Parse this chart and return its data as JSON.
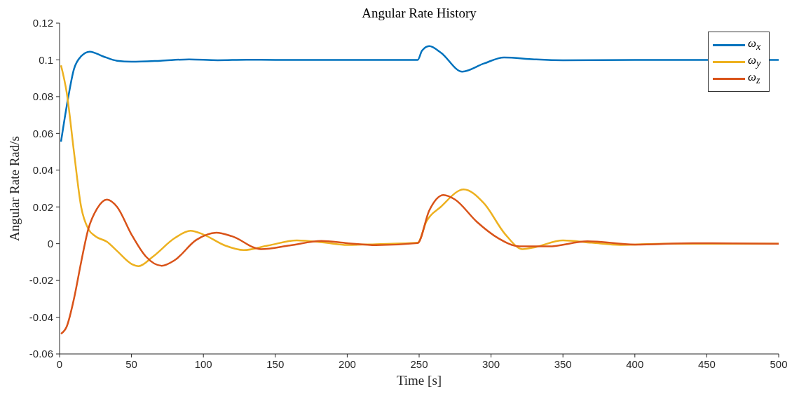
{
  "chart_data": {
    "type": "line",
    "title": "Angular Rate History",
    "xlabel": "Time [s]",
    "ylabel": "Angular Rate Rad/s",
    "xlim": [
      0,
      500
    ],
    "xticks": [
      0,
      50,
      100,
      150,
      200,
      250,
      300,
      350,
      400,
      450,
      500
    ],
    "ylim": [
      -0.06,
      0.12
    ],
    "yticks": [
      -0.06,
      -0.04,
      -0.02,
      0,
      0.02,
      0.04,
      0.06,
      0.08,
      0.1,
      0.12
    ],
    "grid": false,
    "legend": "top right",
    "marker": "none",
    "line_style": "solid",
    "series": [
      {
        "name": "ω$_{x}$",
        "color": "#0072bd",
        "x": [
          1,
          5,
          10,
          15,
          21,
          30,
          40,
          50,
          70,
          90,
          110,
          130,
          150,
          200,
          249,
          252,
          257,
          265,
          280,
          295,
          309,
          330,
          350,
          400,
          450,
          500
        ],
        "values": [
          0.0555,
          0.075,
          0.095,
          0.102,
          0.1045,
          0.102,
          0.0995,
          0.099,
          0.0995,
          0.1003,
          0.0998,
          0.1001,
          0.1,
          0.1,
          0.1,
          0.105,
          0.1075,
          0.104,
          0.0936,
          0.098,
          0.1013,
          0.1003,
          0.0998,
          0.1,
          0.1,
          0.1
        ]
      },
      {
        "name": "ω$_{y}$",
        "color": "#edb120",
        "x": [
          1,
          5,
          10,
          15,
          20,
          25,
          33,
          40,
          50,
          55,
          65,
          80,
          91,
          100,
          115,
          128,
          145,
          165,
          185,
          200,
          220,
          249,
          255,
          265,
          281,
          295,
          310,
          322,
          330,
          350,
          370,
          390,
          420,
          500
        ],
        "values": [
          0.097,
          0.082,
          0.05,
          0.02,
          0.008,
          0.004,
          0.001,
          -0.004,
          -0.011,
          -0.0122,
          -0.007,
          0.003,
          0.007,
          0.005,
          -0.001,
          -0.0035,
          -0.001,
          0.0018,
          0.0005,
          -0.0007,
          -0.0003,
          0.0005,
          0.012,
          0.02,
          0.0295,
          0.022,
          0.005,
          -0.003,
          -0.002,
          0.0018,
          0.0005,
          -0.0007,
          0,
          0
        ]
      },
      {
        "name": "ω$_{z}$",
        "color": "#d95319",
        "x": [
          1,
          5,
          10,
          15,
          20,
          26,
          33,
          40,
          50,
          60,
          71,
          80,
          95,
          109,
          120,
          140,
          160,
          182,
          200,
          220,
          249,
          257,
          267,
          275,
          290,
          305,
          320,
          340,
          367,
          400,
          440,
          500
        ],
        "values": [
          -0.049,
          -0.045,
          -0.03,
          -0.01,
          0.008,
          0.019,
          0.024,
          0.02,
          0.005,
          -0.007,
          -0.012,
          -0.009,
          0.002,
          0.006,
          0.004,
          -0.003,
          -0.001,
          0.0015,
          0.0003,
          -0.0008,
          0.0003,
          0.018,
          0.0265,
          0.024,
          0.012,
          0.003,
          -0.0015,
          -0.0015,
          0.0013,
          -0.0005,
          0.0003,
          0
        ]
      }
    ]
  }
}
